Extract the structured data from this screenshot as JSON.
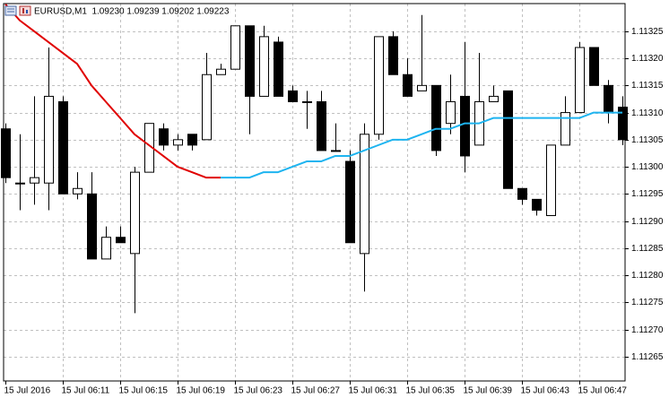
{
  "chart_data": {
    "type": "candlestick",
    "title": "EURUSD,M1  1.09230 1.09239 1.09202 1.09223",
    "categories": [
      "15 Jul 2016",
      null,
      null,
      null,
      "15 Jul 06:11",
      null,
      null,
      null,
      "15 Jul 06:15",
      null,
      null,
      null,
      "15 Jul 06:19",
      null,
      null,
      null,
      "15 Jul 06:23",
      null,
      null,
      null,
      "15 Jul 06:27",
      null,
      null,
      null,
      "15 Jul 06:31",
      null,
      null,
      null,
      "15 Jul 06:35",
      null,
      null,
      null,
      "15 Jul 06:39",
      null,
      null,
      null,
      "15 Jul 06:43",
      null,
      null,
      null,
      "15 Jul 06:47",
      null,
      null,
      null
    ],
    "open": [
      1.11307,
      1.11297,
      1.11297,
      1.11297,
      1.11312,
      1.11295,
      1.11295,
      1.11283,
      1.11287,
      1.11284,
      1.11299,
      1.11307,
      1.11304,
      1.11306,
      1.11305,
      1.11317,
      1.11318,
      1.11326,
      1.11313,
      1.11323,
      1.11314,
      1.11312,
      1.11312,
      1.11303,
      1.11301,
      1.11284,
      1.11306,
      1.11324,
      1.11317,
      1.11314,
      1.11315,
      1.11308,
      1.11313,
      1.11304,
      1.11312,
      1.11314,
      1.11296,
      1.11294,
      1.11291,
      1.11304,
      1.1131,
      1.11322,
      1.11315,
      1.11311
    ],
    "high": [
      1.11308,
      1.11306,
      1.11313,
      1.11322,
      1.11313,
      1.11299,
      1.11299,
      1.11289,
      1.11289,
      1.113,
      1.11308,
      1.11308,
      1.11306,
      1.11306,
      1.11321,
      1.11319,
      1.11326,
      1.11326,
      1.11326,
      1.11324,
      1.11315,
      1.11314,
      1.11314,
      1.11308,
      1.11303,
      1.11308,
      1.11324,
      1.11325,
      1.1132,
      1.11328,
      1.11315,
      1.11317,
      1.11323,
      1.11321,
      1.11315,
      1.11314,
      1.11296,
      1.11294,
      1.11304,
      1.11313,
      1.11323,
      1.11322,
      1.11316,
      1.11313
    ],
    "low": [
      1.11297,
      1.11292,
      1.11293,
      1.11292,
      1.11295,
      1.11294,
      1.11283,
      1.11283,
      1.11286,
      1.11273,
      1.11299,
      1.11303,
      1.11303,
      1.11303,
      1.11305,
      1.11317,
      1.11318,
      1.11306,
      1.11313,
      1.11313,
      1.11312,
      1.11307,
      1.11303,
      1.11303,
      1.11286,
      1.11277,
      1.11305,
      1.11317,
      1.11313,
      1.11314,
      1.11302,
      1.11306,
      1.11299,
      1.11304,
      1.11312,
      1.11296,
      1.11293,
      1.11291,
      1.11291,
      1.11304,
      1.1131,
      1.11315,
      1.11308,
      1.11304
    ],
    "close": [
      1.11298,
      1.11297,
      1.11298,
      1.11313,
      1.11295,
      1.11296,
      1.11283,
      1.11287,
      1.11286,
      1.11299,
      1.11308,
      1.11304,
      1.11305,
      1.11304,
      1.11317,
      1.11318,
      1.11326,
      1.11313,
      1.11324,
      1.11313,
      1.11312,
      1.11312,
      1.11303,
      1.11303,
      1.11286,
      1.11306,
      1.11324,
      1.11317,
      1.11313,
      1.11315,
      1.11303,
      1.11312,
      1.11302,
      1.11312,
      1.11313,
      1.11296,
      1.11294,
      1.11292,
      1.11304,
      1.1131,
      1.11322,
      1.11315,
      1.1131,
      1.11305
    ],
    "up_color": "#ffffff",
    "down_color": "#000000",
    "lines": [
      {
        "color": "#e00000",
        "values": [
          1.1133,
          1.11327,
          1.11325,
          1.11323,
          1.11321,
          1.11319,
          1.11315,
          1.11312,
          1.11309,
          1.11306,
          1.11304,
          1.11302,
          1.113,
          1.11299,
          1.11298,
          1.11298,
          null,
          null,
          null,
          null,
          null,
          null,
          null,
          null,
          null,
          null,
          null,
          null,
          null,
          null,
          null,
          null,
          null,
          null,
          null,
          null,
          null,
          null,
          null,
          null,
          null,
          null,
          null,
          null
        ]
      },
      {
        "color": "#1eb4f0",
        "values": [
          null,
          null,
          null,
          null,
          null,
          null,
          null,
          null,
          null,
          null,
          null,
          null,
          null,
          null,
          null,
          1.11298,
          1.11298,
          1.11298,
          1.11299,
          1.11299,
          1.113,
          1.11301,
          1.11301,
          1.11302,
          1.11302,
          1.11303,
          1.11304,
          1.11305,
          1.11305,
          1.11306,
          1.11307,
          1.11307,
          1.11308,
          1.11308,
          1.11309,
          1.11309,
          1.11309,
          1.11309,
          1.11309,
          1.11309,
          1.11309,
          1.1131,
          1.1131,
          1.1131
        ]
      }
    ],
    "ylim": [
      1.112605,
      1.113301
    ],
    "yticks": [
      1.11325,
      {
        "value": 1.1132,
        "label": "1.11320"
      },
      1.11315,
      {
        "value": 1.1131,
        "label": "1.11310"
      },
      1.11305,
      {
        "value": 1.113,
        "label": "1.11300"
      },
      1.11295,
      {
        "value": 1.1129,
        "label": "1.11290"
      },
      1.11285,
      {
        "value": 1.1128,
        "label": "1.11280"
      },
      1.11275,
      {
        "value": 1.1127,
        "label": "1.11270"
      },
      1.11265
    ],
    "grid": true
  }
}
